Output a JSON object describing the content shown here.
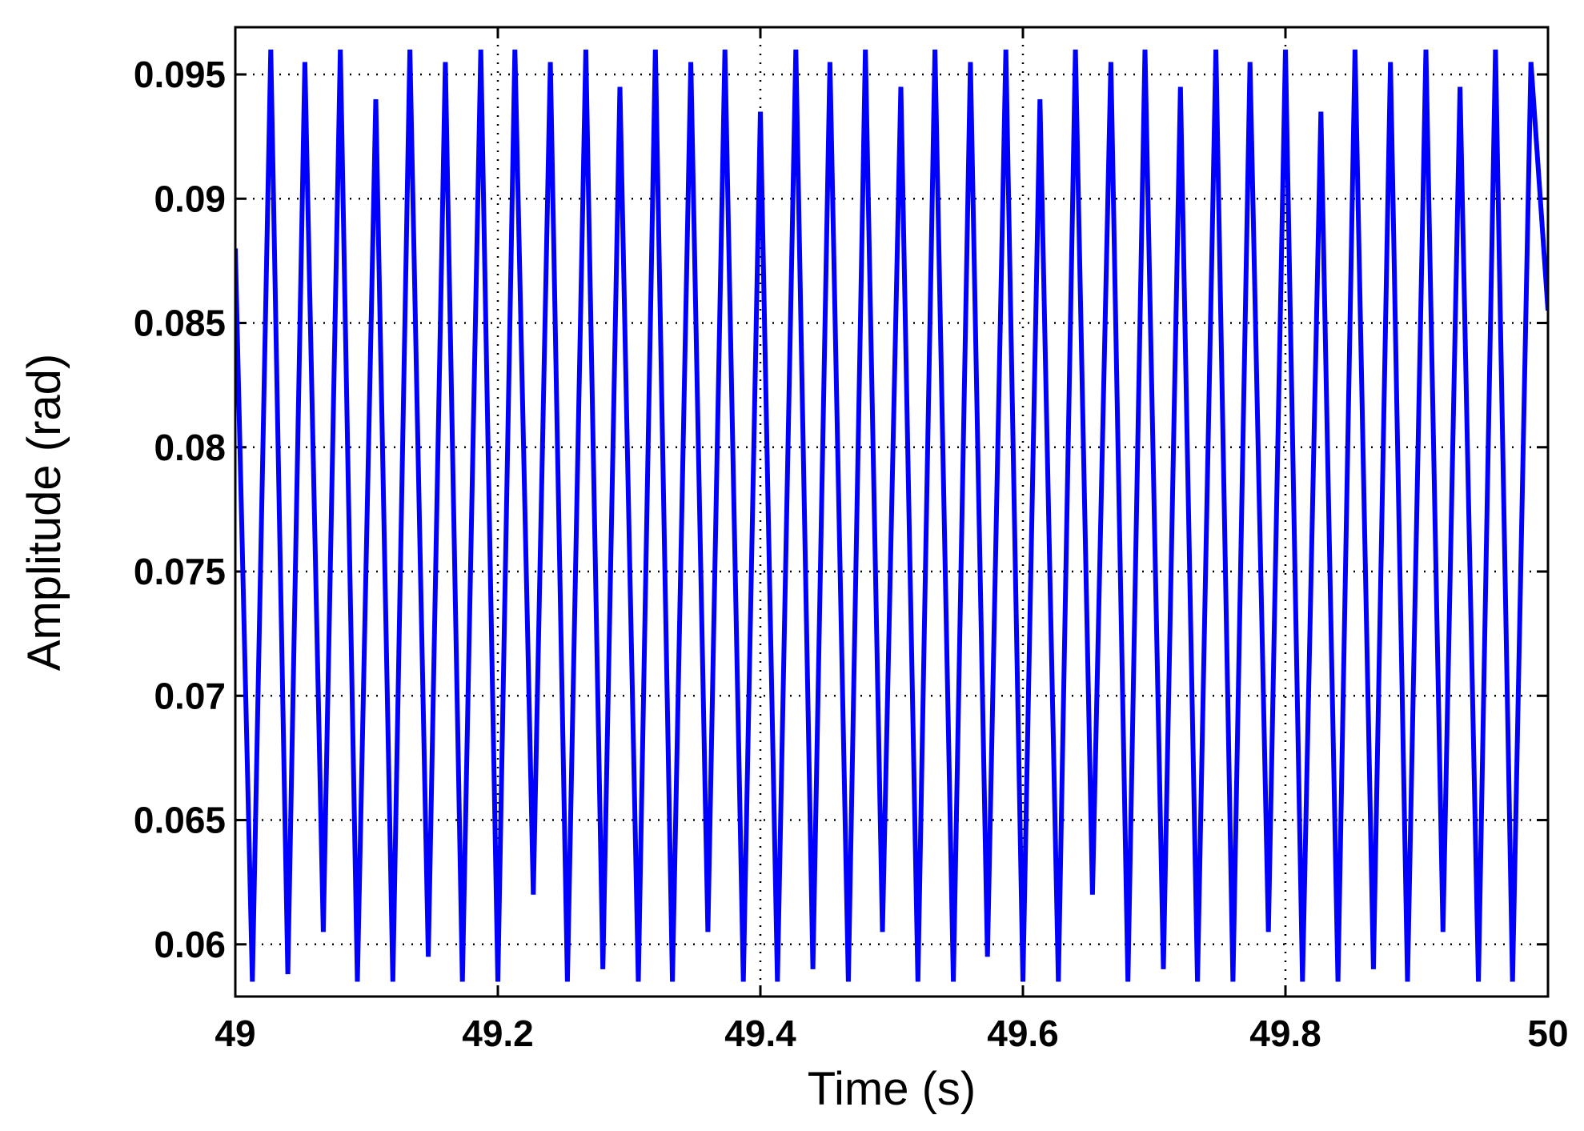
{
  "chart_data": {
    "type": "line",
    "xlabel": "Time (s)",
    "ylabel": "Amplitude (rad)",
    "xlim": [
      49,
      50
    ],
    "xticks": [
      49,
      49.2,
      49.4,
      49.6,
      49.8,
      50
    ],
    "ylim": [
      0.0579,
      0.0969
    ],
    "yticks": [
      0.06,
      0.065,
      0.07,
      0.075,
      0.08,
      0.085,
      0.09,
      0.095
    ],
    "grid": true,
    "x": [
      49,
      49.013,
      49.027,
      49.04,
      49.053,
      49.067,
      49.08,
      49.093,
      49.107,
      49.12,
      49.133,
      49.147,
      49.16,
      49.173,
      49.187,
      49.2,
      49.213,
      49.227,
      49.24,
      49.253,
      49.267,
      49.28,
      49.293,
      49.307,
      49.32,
      49.333,
      49.347,
      49.36,
      49.373,
      49.387,
      49.4,
      49.413,
      49.427,
      49.44,
      49.453,
      49.467,
      49.48,
      49.493,
      49.507,
      49.52,
      49.533,
      49.547,
      49.56,
      49.573,
      49.587,
      49.6,
      49.613,
      49.627,
      49.64,
      49.653,
      49.667,
      49.68,
      49.693,
      49.707,
      49.72,
      49.733,
      49.747,
      49.76,
      49.773,
      49.787,
      49.8,
      49.813,
      49.827,
      49.84,
      49.853,
      49.867,
      49.88,
      49.893,
      49.907,
      49.92,
      49.933,
      49.947,
      49.96,
      49.973,
      49.987,
      50
    ],
    "series": [
      {
        "color": "#0000ff",
        "values": [
          0.088,
          0.0585,
          0.096,
          0.0588,
          0.0955,
          0.0605,
          0.096,
          0.0585,
          0.094,
          0.0585,
          0.096,
          0.0595,
          0.0955,
          0.0585,
          0.096,
          0.0585,
          0.096,
          0.062,
          0.0955,
          0.0585,
          0.096,
          0.059,
          0.0945,
          0.0585,
          0.096,
          0.0585,
          0.0955,
          0.0605,
          0.096,
          0.0585,
          0.0935,
          0.0585,
          0.096,
          0.059,
          0.0955,
          0.0585,
          0.096,
          0.0605,
          0.0945,
          0.0585,
          0.096,
          0.0585,
          0.0955,
          0.0595,
          0.096,
          0.0585,
          0.094,
          0.0585,
          0.096,
          0.062,
          0.0955,
          0.0585,
          0.096,
          0.059,
          0.0945,
          0.0585,
          0.096,
          0.0585,
          0.0955,
          0.0605,
          0.096,
          0.0585,
          0.0935,
          0.0585,
          0.096,
          0.059,
          0.0955,
          0.0585,
          0.096,
          0.0605,
          0.0945,
          0.0585,
          0.096,
          0.0585,
          0.0955,
          0.0855
        ]
      }
    ]
  }
}
